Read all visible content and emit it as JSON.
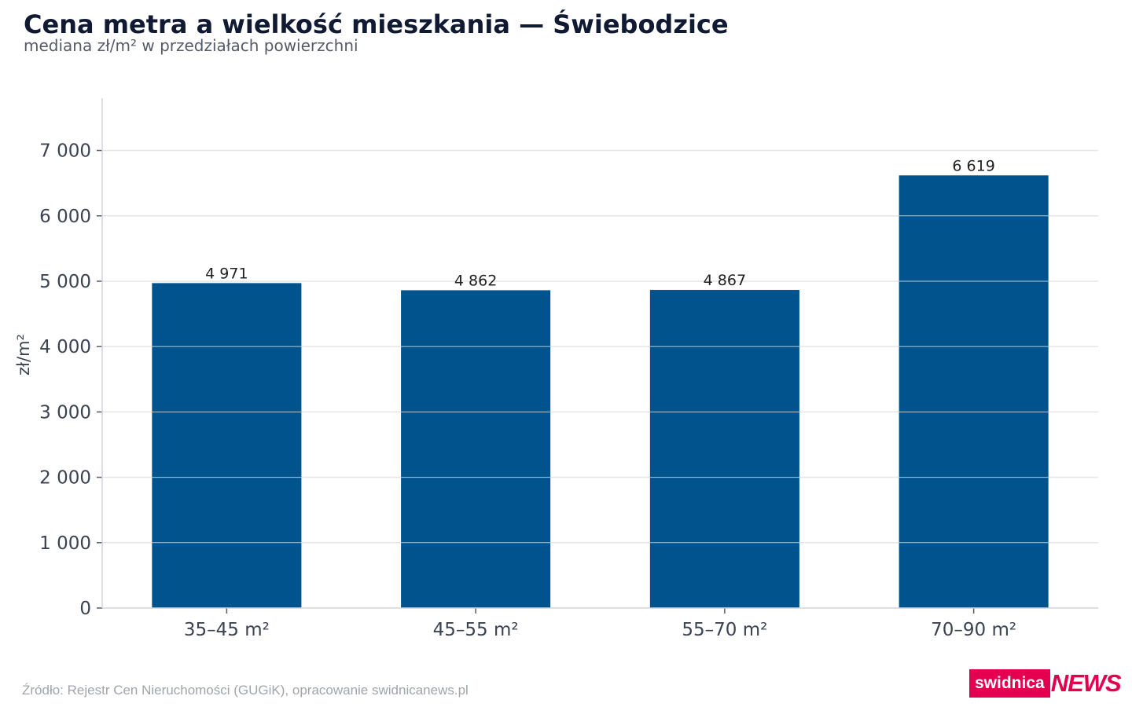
{
  "header": {
    "title": "Cena metra a wielkość mieszkania — Świebodzice",
    "subtitle": "mediana zł/m² w przedziałach powierzchni"
  },
  "footer": {
    "source": "Źródło: Rejestr Cen Nieruchomości (GUGiK), opracowanie swidnicanews.pl",
    "logo_main": "swidnica",
    "logo_accent": "NEWS"
  },
  "colors": {
    "bar": "#00538c",
    "grid": "#e3e5e8",
    "axis": "#d0d3d8",
    "logo": "#e4004f"
  },
  "chart_data": {
    "type": "bar",
    "title": "Cena metra a wielkość mieszkania — Świebodzice",
    "subtitle": "mediana zł/m² w przedziałach powierzchni",
    "xlabel": "",
    "ylabel": "zł/m²",
    "categories": [
      "35–45 m²",
      "45–55 m²",
      "55–70 m²",
      "70–90 m²"
    ],
    "values": [
      4971,
      4862,
      4867,
      6619
    ],
    "value_labels": [
      "4 971",
      "4 862",
      "4 867",
      "6 619"
    ],
    "ylim": [
      0,
      7800
    ],
    "yticks": [
      0,
      1000,
      2000,
      3000,
      4000,
      5000,
      6000,
      7000
    ],
    "ytick_labels": [
      "0",
      "1 000",
      "2 000",
      "3 000",
      "4 000",
      "5 000",
      "6 000",
      "7 000"
    ],
    "grid": true,
    "legend": "none"
  }
}
